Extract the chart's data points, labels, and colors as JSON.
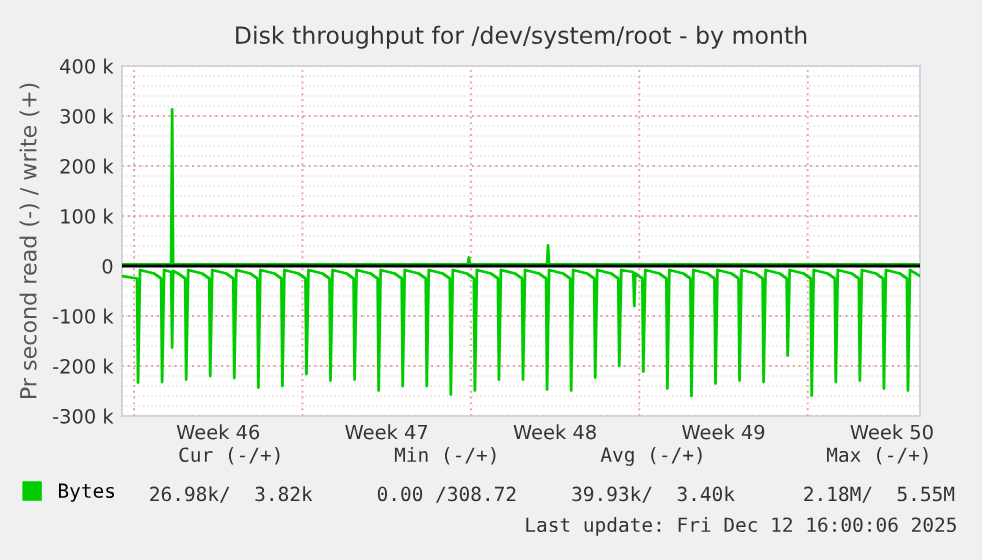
{
  "chart_data": {
    "type": "line",
    "title": "Disk throughput for /dev/system/root - by month",
    "ylabel": "Pr second read (-) / write (+)",
    "xlim": [
      "2025-11-09T12:00",
      "2025-12-12T16:00"
    ],
    "xticks": [
      {
        "value": "2025-11-10T00:00",
        "label": null
      },
      {
        "value": "2025-11-13T12:00",
        "label": "Week 46"
      },
      {
        "value": "2025-11-17T00:00",
        "label": null
      },
      {
        "value": "2025-11-20T12:00",
        "label": "Week 47"
      },
      {
        "value": "2025-11-24T00:00",
        "label": null
      },
      {
        "value": "2025-11-27T12:00",
        "label": "Week 48"
      },
      {
        "value": "2025-12-01T00:00",
        "label": null
      },
      {
        "value": "2025-12-04T12:00",
        "label": "Week 49"
      },
      {
        "value": "2025-12-08T00:00",
        "label": null
      },
      {
        "value": "2025-12-11T12:00",
        "label": "Week 50"
      }
    ],
    "ylim": [
      -300000,
      400000
    ],
    "yticks": [
      {
        "value": -300000,
        "label": "-300 k"
      },
      {
        "value": -200000,
        "label": "-200 k"
      },
      {
        "value": -100000,
        "label": "-100 k"
      },
      0,
      {
        "value": 100000,
        "label": "100 k"
      },
      {
        "value": 200000,
        "label": "200 k"
      },
      {
        "value": 300000,
        "label": "300 k"
      },
      {
        "value": 400000,
        "label": "400 k"
      }
    ],
    "grid": true,
    "legend": "bottom left",
    "ref_lines": [
      {
        "axis": "y",
        "value": 0,
        "color": "#000000"
      }
    ],
    "series": [
      {
        "name": "Bytes",
        "color": "#00cc00",
        "x": [
          "2025-11-09T12:00",
          "2025-11-11T13:00",
          "2025-11-11T14:00",
          "2025-11-11T15:00",
          "2025-11-23T21:00",
          "2025-11-23T22:00",
          "2025-11-23T23:00",
          "2025-11-27T04:00",
          "2025-11-27T05:00",
          "2025-11-27T06:00",
          "2025-12-12T16:00"
        ],
        "values": [
          3000,
          3000,
          313000,
          3000,
          3000,
          17000,
          3000,
          3000,
          41000,
          3000,
          3000
        ]
      },
      {
        "color": "#00cc00",
        "x": [
          "2025-11-09T12:00",
          "2025-11-10T03:00",
          "2025-11-10T04:00",
          "2025-11-10T06:00",
          "2025-11-10T20:00",
          "2025-11-11T03:00",
          "2025-11-11T04:00",
          "2025-11-11T06:00",
          "2025-11-11T13:00",
          "2025-11-11T14:00",
          "2025-11-11T15:00",
          "2025-11-11T20:00",
          "2025-11-12T03:00",
          "2025-11-12T04:00",
          "2025-11-12T06:00",
          "2025-11-12T20:00",
          "2025-11-13T03:00",
          "2025-11-13T04:00",
          "2025-11-13T06:00",
          "2025-11-13T20:00",
          "2025-11-14T03:00",
          "2025-11-14T04:00",
          "2025-11-14T06:00",
          "2025-11-14T20:00",
          "2025-11-15T03:00",
          "2025-11-15T04:00",
          "2025-11-15T06:00",
          "2025-11-15T20:00",
          "2025-11-16T03:00",
          "2025-11-16T04:00",
          "2025-11-16T06:00",
          "2025-11-16T20:00",
          "2025-11-17T03:00",
          "2025-11-17T04:00",
          "2025-11-17T06:00",
          "2025-11-17T20:00",
          "2025-11-18T03:00",
          "2025-11-18T04:00",
          "2025-11-18T06:00",
          "2025-11-18T20:00",
          "2025-11-19T03:00",
          "2025-11-19T04:00",
          "2025-11-19T06:00",
          "2025-11-19T20:00",
          "2025-11-20T03:00",
          "2025-11-20T04:00",
          "2025-11-20T06:00",
          "2025-11-20T20:00",
          "2025-11-21T03:00",
          "2025-11-21T04:00",
          "2025-11-21T06:00",
          "2025-11-21T20:00",
          "2025-11-22T03:00",
          "2025-11-22T04:00",
          "2025-11-22T06:00",
          "2025-11-22T20:00",
          "2025-11-23T03:00",
          "2025-11-23T04:00",
          "2025-11-23T06:00",
          "2025-11-23T20:00",
          "2025-11-24T03:00",
          "2025-11-24T04:00",
          "2025-11-24T06:00",
          "2025-11-24T20:00",
          "2025-11-25T03:00",
          "2025-11-25T04:00",
          "2025-11-25T06:00",
          "2025-11-25T20:00",
          "2025-11-26T03:00",
          "2025-11-26T04:00",
          "2025-11-26T06:00",
          "2025-11-26T20:00",
          "2025-11-27T03:00",
          "2025-11-27T04:00",
          "2025-11-27T06:00",
          "2025-11-27T20:00",
          "2025-11-28T03:00",
          "2025-11-28T04:00",
          "2025-11-28T06:00",
          "2025-11-28T20:00",
          "2025-11-29T03:00",
          "2025-11-29T04:00",
          "2025-11-29T06:00",
          "2025-11-29T20:00",
          "2025-11-30T03:00",
          "2025-11-30T04:00",
          "2025-11-30T06:00",
          "2025-11-30T18:00",
          "2025-11-30T19:00",
          "2025-11-30T20:00",
          "2025-12-01T03:00",
          "2025-12-01T04:00",
          "2025-12-01T06:00",
          "2025-12-01T20:00",
          "2025-12-02T03:00",
          "2025-12-02T04:00",
          "2025-12-02T06:00",
          "2025-12-02T20:00",
          "2025-12-03T03:00",
          "2025-12-03T04:00",
          "2025-12-03T06:00",
          "2025-12-03T20:00",
          "2025-12-04T03:00",
          "2025-12-04T04:00",
          "2025-12-04T06:00",
          "2025-12-04T20:00",
          "2025-12-05T03:00",
          "2025-12-05T04:00",
          "2025-12-05T06:00",
          "2025-12-05T20:00",
          "2025-12-06T03:00",
          "2025-12-06T04:00",
          "2025-12-06T06:00",
          "2025-12-06T20:00",
          "2025-12-07T03:00",
          "2025-12-07T04:00",
          "2025-12-07T06:00",
          "2025-12-07T20:00",
          "2025-12-08T03:00",
          "2025-12-08T04:00",
          "2025-12-08T06:00",
          "2025-12-08T20:00",
          "2025-12-09T03:00",
          "2025-12-09T04:00",
          "2025-12-09T06:00",
          "2025-12-09T20:00",
          "2025-12-10T03:00",
          "2025-12-10T04:00",
          "2025-12-10T06:00",
          "2025-12-10T20:00",
          "2025-12-11T03:00",
          "2025-12-11T04:00",
          "2025-12-11T06:00",
          "2025-12-11T20:00",
          "2025-12-12T03:00",
          "2025-12-12T04:00",
          "2025-12-12T06:00",
          "2025-12-12T16:00"
        ],
        "values": [
          -20000,
          -25000,
          -233000,
          -8000,
          -15000,
          -25000,
          -232000,
          -8000,
          -12000,
          -163000,
          -10000,
          -15000,
          -25000,
          -227000,
          -8000,
          -15000,
          -25000,
          -220000,
          -8000,
          -15000,
          -25000,
          -224000,
          -8000,
          -15000,
          -25000,
          -243000,
          -8000,
          -15000,
          -25000,
          -240000,
          -8000,
          -15000,
          -25000,
          -216000,
          -8000,
          -15000,
          -25000,
          -229000,
          -8000,
          -15000,
          -25000,
          -227000,
          -8000,
          -15000,
          -25000,
          -249000,
          -8000,
          -15000,
          -25000,
          -240000,
          -8000,
          -15000,
          -25000,
          -240000,
          -8000,
          -15000,
          -25000,
          -257000,
          -8000,
          -15000,
          -25000,
          -249000,
          -8000,
          -15000,
          -25000,
          -227000,
          -8000,
          -15000,
          -25000,
          -227000,
          -8000,
          -15000,
          -25000,
          -247000,
          -8000,
          -15000,
          -25000,
          -249000,
          -8000,
          -15000,
          -25000,
          -223000,
          -8000,
          -15000,
          -25000,
          -200000,
          -8000,
          -12000,
          -80000,
          -15000,
          -25000,
          -211000,
          -8000,
          -15000,
          -25000,
          -245000,
          -8000,
          -15000,
          -25000,
          -260000,
          -8000,
          -15000,
          -25000,
          -235000,
          -8000,
          -15000,
          -25000,
          -229000,
          -8000,
          -15000,
          -25000,
          -232000,
          -8000,
          -15000,
          -25000,
          -179000,
          -8000,
          -15000,
          -25000,
          -259000,
          -8000,
          -15000,
          -25000,
          -232000,
          -8000,
          -15000,
          -25000,
          -229000,
          -8000,
          -15000,
          -25000,
          -245000,
          -8000,
          -15000,
          -25000,
          -249000,
          -8000,
          -20000
        ]
      }
    ],
    "annotations": [
      "Cur (-/+)",
      "Min (-/+)",
      "Avg (-/+)",
      "Max (-/+)",
      "26.98k/  3.82k",
      "0.00 /308.72",
      "39.93k/  3.40k",
      "2.18M/  5.55M",
      "Last update: Fri Dec 12 16:00:06 2025"
    ]
  }
}
